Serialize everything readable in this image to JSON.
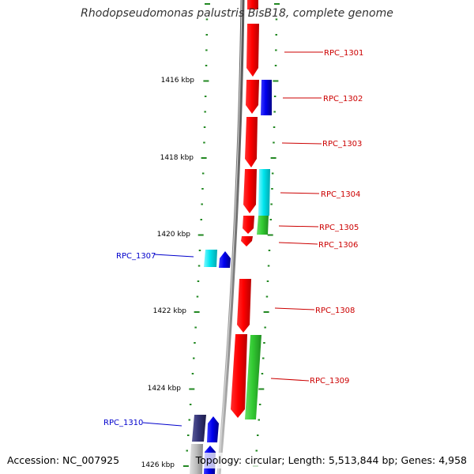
{
  "title": "Rhodopseudomonas palustris BisB18, complete genome",
  "ruler_labels": [
    "1416 kbp",
    "1418 kbp",
    "1420 kbp",
    "1422 kbp",
    "1424 kbp",
    "1426 kbp"
  ],
  "genes": [
    {
      "name": "RPC_1301",
      "strand": "+",
      "label_color": "#cc0000"
    },
    {
      "name": "RPC_1302",
      "strand": "+",
      "label_color": "#cc0000"
    },
    {
      "name": "RPC_1303",
      "strand": "+",
      "label_color": "#cc0000"
    },
    {
      "name": "RPC_1304",
      "strand": "+",
      "label_color": "#cc0000"
    },
    {
      "name": "RPC_1305",
      "strand": "+",
      "label_color": "#cc0000"
    },
    {
      "name": "RPC_1306",
      "strand": "+",
      "label_color": "#cc0000"
    },
    {
      "name": "RPC_1307",
      "strand": "-",
      "label_color": "#0000cc"
    },
    {
      "name": "RPC_1308",
      "strand": "+",
      "label_color": "#cc0000"
    },
    {
      "name": "RPC_1309",
      "strand": "+",
      "label_color": "#cc0000"
    },
    {
      "name": "RPC_1310",
      "strand": "-",
      "label_color": "#0000cc"
    }
  ],
  "footer": {
    "accession": "Accession: NC_007925",
    "topology": "Topology: circular; Length: 5,513,844 bp; Genes: 4,958"
  },
  "colors": {
    "plus_strand": "#ff0000",
    "minus_strand": "#0000ee",
    "cyan_feature": "#00e5ee",
    "green_feature": "#33cc33",
    "navy_feature": "#333377",
    "grid_dash": "#228822"
  }
}
